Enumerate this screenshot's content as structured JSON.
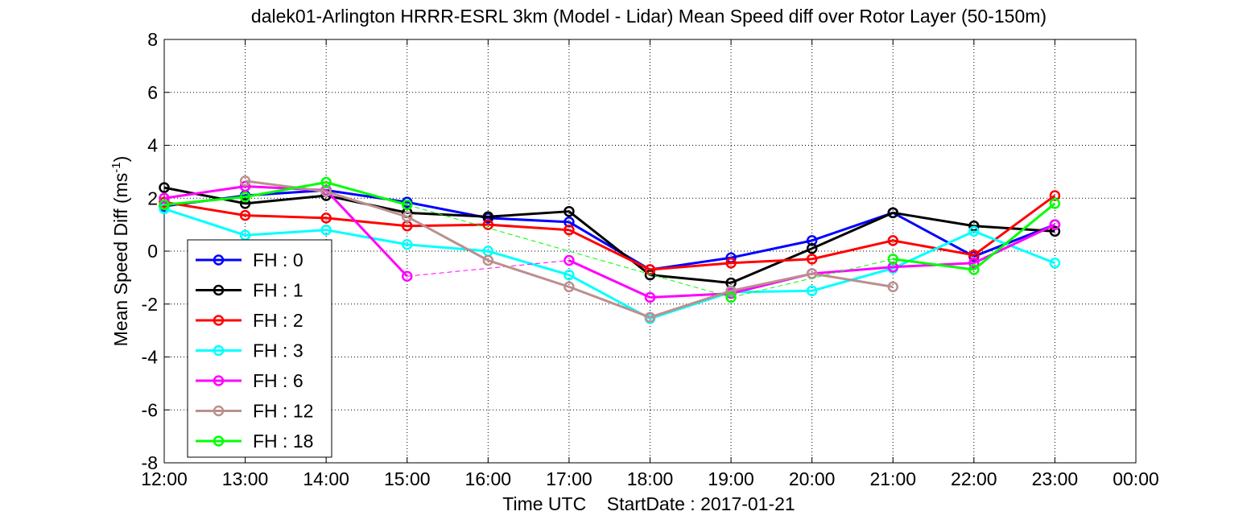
{
  "chart_data": {
    "type": "line",
    "title": "dalek01-Arlington HRRR-ESRL 3km (Model - Lidar) Mean Speed diff over Rotor Layer (50-150m)",
    "xlabel": "Time UTC    StartDate : 2017-01-21",
    "ylabel_main": "Mean Speed Diff (ms",
    "ylabel_sup": "-1",
    "ylabel_close": ")",
    "x_ticks": [
      "12:00",
      "13:00",
      "14:00",
      "15:00",
      "16:00",
      "17:00",
      "18:00",
      "19:00",
      "20:00",
      "21:00",
      "22:00",
      "23:00",
      "00:00"
    ],
    "y_ticks": [
      "-8",
      "-6",
      "-4",
      "-2",
      "0",
      "2",
      "4",
      "6",
      "8"
    ],
    "xlim": [
      0,
      12
    ],
    "ylim": [
      -8,
      8
    ],
    "grid": true,
    "legend_position": "lower-left",
    "series": [
      {
        "name": "FH : 0",
        "color": "#0000ff",
        "points": [
          [
            0,
            1.7
          ],
          [
            1,
            2.1
          ],
          [
            2,
            2.3
          ],
          [
            3,
            1.85
          ],
          [
            4,
            1.25
          ],
          [
            5,
            1.1
          ],
          [
            6,
            -0.7
          ],
          [
            7,
            -0.25
          ],
          [
            8,
            0.4
          ],
          [
            9,
            1.45
          ],
          [
            10,
            -0.2
          ],
          [
            11,
            1.0
          ]
        ]
      },
      {
        "name": "FH : 1",
        "color": "#000000",
        "points": [
          [
            0,
            2.4
          ],
          [
            1,
            1.8
          ],
          [
            2,
            2.1
          ],
          [
            3,
            1.45
          ],
          [
            4,
            1.3
          ],
          [
            5,
            1.5
          ],
          [
            6,
            -0.9
          ],
          [
            7,
            -1.2
          ],
          [
            8,
            0.1
          ],
          [
            9,
            1.45
          ],
          [
            10,
            0.95
          ],
          [
            11,
            0.75
          ]
        ]
      },
      {
        "name": "FH : 2",
        "color": "#ff0000",
        "points": [
          [
            0,
            1.85
          ],
          [
            1,
            1.35
          ],
          [
            2,
            1.25
          ],
          [
            3,
            0.95
          ],
          [
            4,
            1.0
          ],
          [
            5,
            0.8
          ],
          [
            6,
            -0.7
          ],
          [
            7,
            -0.45
          ],
          [
            8,
            -0.3
          ],
          [
            9,
            0.4
          ],
          [
            10,
            -0.15
          ],
          [
            11,
            2.1
          ]
        ]
      },
      {
        "name": "FH : 3",
        "color": "#00ffff",
        "points": [
          [
            0,
            1.6
          ],
          [
            1,
            0.6
          ],
          [
            2,
            0.8
          ],
          [
            3,
            0.25
          ],
          [
            4,
            0.0
          ],
          [
            5,
            -0.9
          ],
          [
            6,
            -2.55
          ],
          [
            7,
            -1.55
          ],
          [
            8,
            -1.5
          ],
          [
            9,
            -0.65
          ],
          [
            10,
            0.75
          ],
          [
            11,
            -0.45
          ]
        ]
      },
      {
        "name": "FH : 6",
        "color": "#ff00ff",
        "points": [
          [
            0,
            2.0
          ],
          [
            1,
            2.45
          ],
          [
            2,
            2.3
          ],
          [
            3,
            -0.95
          ],
          [
            5,
            -0.35
          ],
          [
            6,
            -1.75
          ],
          [
            7,
            -1.6
          ],
          [
            8,
            -0.85
          ],
          [
            9,
            -0.6
          ],
          [
            10,
            -0.45
          ],
          [
            11,
            1.0
          ]
        ],
        "dashed_gap": [
          3,
          5
        ]
      },
      {
        "name": "FH : 12",
        "color": "#bc8f8f",
        "points": [
          [
            1,
            2.65
          ],
          [
            2,
            2.25
          ],
          [
            3,
            1.3
          ],
          [
            4,
            -0.35
          ],
          [
            5,
            -1.35
          ],
          [
            6,
            -2.5
          ],
          [
            7,
            -1.5
          ],
          [
            8,
            -0.85
          ],
          [
            9,
            -1.35
          ]
        ]
      },
      {
        "name": "FH : 18",
        "color": "#00ff00",
        "points": [
          [
            0,
            1.75
          ],
          [
            1,
            2.05
          ],
          [
            2,
            2.6
          ],
          [
            3,
            1.75
          ],
          [
            7,
            -1.75
          ],
          [
            9,
            -0.3
          ],
          [
            10,
            -0.7
          ],
          [
            11,
            1.8
          ]
        ],
        "dashed_segments": [
          [
            3,
            7
          ],
          [
            7,
            9
          ]
        ]
      }
    ]
  }
}
